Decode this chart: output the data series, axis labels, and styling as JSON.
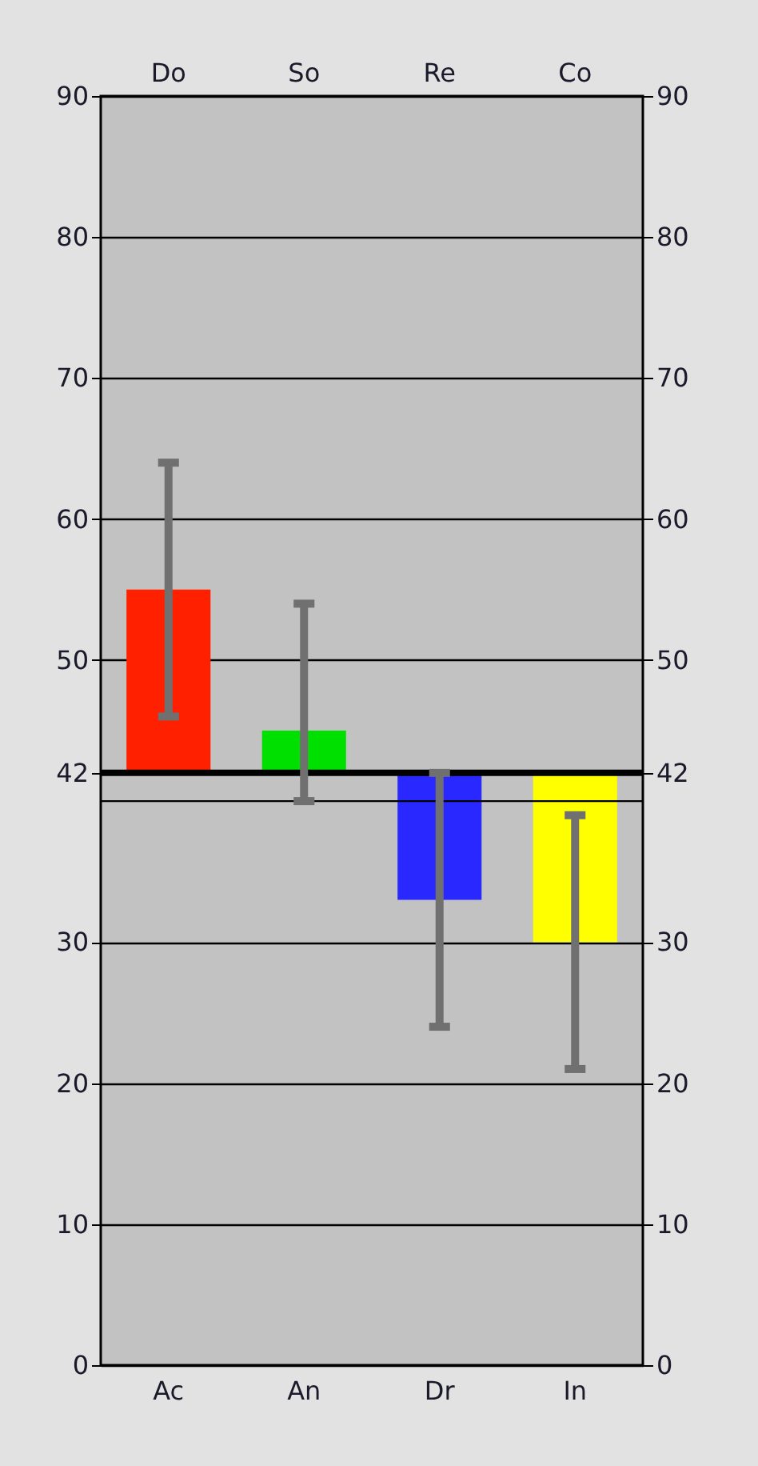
{
  "chart_data": {
    "type": "bar",
    "categories": [
      "Ac",
      "An",
      "Dr",
      "In"
    ],
    "annotations": [
      "Do",
      "So",
      "Re",
      "Co"
    ],
    "base": [
      42,
      42,
      42,
      42
    ],
    "values": [
      13,
      3,
      -9,
      -12
    ],
    "colors": [
      "#ff2000",
      "#00e000",
      "#2828ff",
      "#ffff00"
    ],
    "errors": [
      [
        46,
        64
      ],
      [
        40,
        54
      ],
      [
        24,
        42
      ],
      [
        21,
        39
      ]
    ],
    "ylim": [
      0,
      90
    ],
    "yticks": [
      0,
      10,
      20,
      30,
      42,
      50,
      60,
      70,
      80,
      90
    ],
    "y2lim": [
      0,
      90
    ],
    "y2ticks": [
      0,
      10,
      20,
      30,
      42,
      50,
      60,
      70,
      80,
      90
    ],
    "ref_lines": [
      {
        "axis": "y",
        "value": 42,
        "color": "#000000",
        "line_style": "solid"
      },
      {
        "axis": "y",
        "value": 40,
        "color": "#000000",
        "line_style": "solid"
      }
    ],
    "grid": "y"
  }
}
